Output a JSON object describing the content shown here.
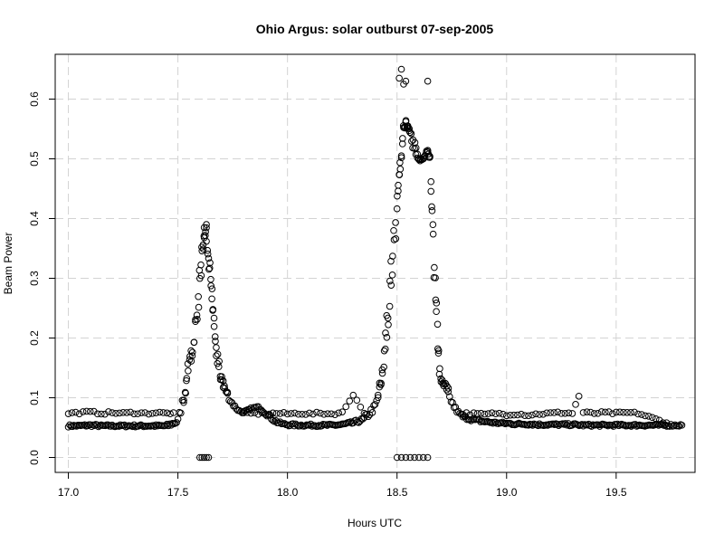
{
  "chart_data": {
    "type": "scatter",
    "title": "Ohio Argus: solar outburst 07-sep-2005",
    "xlabel": "Hours UTC",
    "ylabel": "Beam Power",
    "xlim": [
      16.94,
      19.86
    ],
    "ylim": [
      -0.025,
      0.675
    ],
    "xticks": [
      17.0,
      17.5,
      18.0,
      18.5,
      19.0,
      19.5
    ],
    "xtick_labels": [
      "17.0",
      "17.5",
      "18.0",
      "18.5",
      "19.0",
      "19.5"
    ],
    "yticks": [
      0.0,
      0.1,
      0.2,
      0.3,
      0.4,
      0.5,
      0.6
    ],
    "ytick_labels": [
      "0.0",
      "0.1",
      "0.2",
      "0.3",
      "0.4",
      "0.5",
      "0.6"
    ],
    "grid": true,
    "marker": "open-circle",
    "series": [
      {
        "x": [
          17.0,
          17.05,
          17.1,
          17.15,
          17.2,
          17.25,
          17.3,
          17.35,
          17.4,
          17.45,
          17.5,
          17.52,
          17.54,
          17.56,
          17.58,
          17.6,
          17.61,
          17.62,
          17.63,
          17.64,
          17.65,
          17.66,
          17.67,
          17.68,
          17.7,
          17.72,
          17.74,
          17.76,
          17.78,
          17.8,
          17.82,
          17.84,
          17.86,
          17.88,
          17.9,
          17.92,
          17.94,
          17.96,
          17.98,
          18.0,
          18.05,
          18.1,
          18.15,
          18.2,
          18.25,
          18.3,
          18.35,
          18.4,
          18.42,
          18.44,
          18.46,
          18.48,
          18.5,
          18.51,
          18.52,
          18.53,
          18.54,
          18.55,
          18.56,
          18.58,
          18.6,
          18.62,
          18.64,
          18.65,
          18.66,
          18.67,
          18.68,
          18.69,
          18.7,
          18.72,
          18.74,
          18.76,
          18.78,
          18.8,
          18.85,
          18.9,
          18.95,
          19.0,
          19.05,
          19.1,
          19.15,
          19.2,
          19.25,
          19.3,
          19.35,
          19.4,
          19.45,
          19.5,
          19.55,
          19.6,
          19.65,
          19.7,
          19.75,
          19.8
        ],
        "y": [
          0.053,
          0.053,
          0.054,
          0.053,
          0.053,
          0.053,
          0.053,
          0.053,
          0.053,
          0.053,
          0.06,
          0.09,
          0.13,
          0.17,
          0.22,
          0.3,
          0.34,
          0.37,
          0.38,
          0.33,
          0.29,
          0.25,
          0.2,
          0.16,
          0.13,
          0.11,
          0.095,
          0.085,
          0.078,
          0.076,
          0.078,
          0.082,
          0.084,
          0.082,
          0.075,
          0.068,
          0.062,
          0.058,
          0.056,
          0.055,
          0.054,
          0.054,
          0.054,
          0.054,
          0.055,
          0.058,
          0.064,
          0.085,
          0.11,
          0.16,
          0.24,
          0.33,
          0.42,
          0.47,
          0.51,
          0.55,
          0.56,
          0.55,
          0.54,
          0.52,
          0.5,
          0.5,
          0.51,
          0.5,
          0.43,
          0.33,
          0.25,
          0.17,
          0.13,
          0.12,
          0.1,
          0.085,
          0.075,
          0.068,
          0.063,
          0.06,
          0.058,
          0.057,
          0.056,
          0.056,
          0.055,
          0.055,
          0.055,
          0.055,
          0.054,
          0.054,
          0.054,
          0.054,
          0.054,
          0.054,
          0.054,
          0.054,
          0.054,
          0.054
        ]
      }
    ],
    "upper_scatter": {
      "x": [
        17.0,
        17.05,
        17.1,
        17.15,
        17.2,
        17.25,
        17.3,
        17.35,
        17.4,
        17.45,
        17.48,
        17.8,
        17.85,
        17.9,
        17.95,
        18.0,
        18.05,
        18.1,
        18.15,
        18.2,
        18.25,
        18.3,
        18.35,
        18.8,
        18.85,
        18.9,
        18.95,
        19.0,
        19.05,
        19.1,
        19.15,
        19.2,
        19.25,
        19.3,
        19.33,
        19.35,
        19.4,
        19.45,
        19.5,
        19.55,
        19.6,
        19.73
      ],
      "y": [
        0.074,
        0.075,
        0.076,
        0.074,
        0.075,
        0.074,
        0.075,
        0.074,
        0.075,
        0.074,
        0.075,
        0.073,
        0.074,
        0.073,
        0.074,
        0.073,
        0.074,
        0.073,
        0.074,
        0.073,
        0.075,
        0.106,
        0.074,
        0.074,
        0.073,
        0.072,
        0.074,
        0.072,
        0.073,
        0.071,
        0.073,
        0.074,
        0.075,
        0.074,
        0.103,
        0.075,
        0.074,
        0.075,
        0.074,
        0.075,
        0.074,
        0.058
      ]
    },
    "peak_outliers": {
      "x": [
        18.51,
        18.52,
        18.53,
        18.54,
        18.64,
        17.62,
        17.63
      ],
      "y": [
        0.635,
        0.65,
        0.625,
        0.63,
        0.63,
        0.385,
        0.39
      ]
    },
    "zero_dropouts": {
      "x": [
        17.6,
        17.61,
        17.62,
        17.63,
        17.64,
        18.5,
        18.52,
        18.54,
        18.56,
        18.58,
        18.6,
        18.62,
        18.64
      ],
      "y": [
        0,
        0,
        0,
        0,
        0,
        0,
        0,
        0,
        0,
        0,
        0,
        0,
        0
      ]
    }
  }
}
